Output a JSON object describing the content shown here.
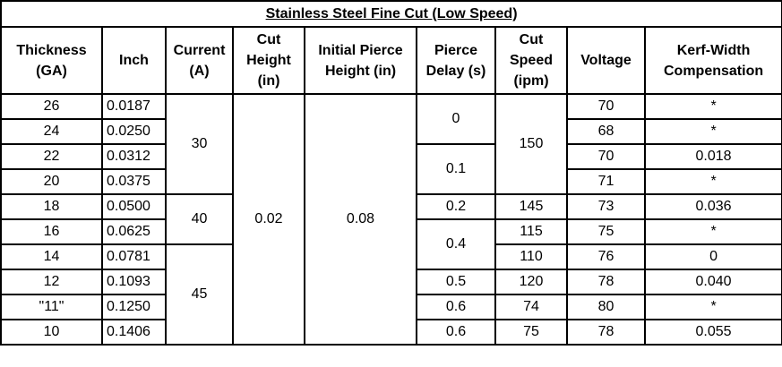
{
  "title": "Stainless Steel Fine Cut (Low Speed)",
  "headers": {
    "thickness": [
      "Thickness",
      "(GA)"
    ],
    "inch": [
      "Inch"
    ],
    "current": [
      "Current",
      "(A)"
    ],
    "cut_height": [
      "Cut",
      "Height",
      "(in)"
    ],
    "pierce_height": [
      "Initial Pierce",
      "Height (in)"
    ],
    "pierce_delay": [
      "Pierce",
      "Delay (s)"
    ],
    "cut_speed": [
      "Cut",
      "Speed",
      "(ipm)"
    ],
    "voltage": [
      "Voltage"
    ],
    "kerf": [
      "Kerf-Width",
      "Compensation"
    ]
  },
  "rows": [
    {
      "gauge": "26",
      "inch": "0.0187",
      "voltage": "70",
      "kerf": "*"
    },
    {
      "gauge": "24",
      "inch": "0.0250",
      "voltage": "68",
      "kerf": "*"
    },
    {
      "gauge": "22",
      "inch": "0.0312",
      "voltage": "70",
      "kerf": "0.018"
    },
    {
      "gauge": "20",
      "inch": "0.0375",
      "voltage": "71",
      "kerf": "*"
    },
    {
      "gauge": "18",
      "inch": "0.0500",
      "voltage": "73",
      "kerf": "0.036"
    },
    {
      "gauge": "16",
      "inch": "0.0625",
      "voltage": "75",
      "kerf": "*"
    },
    {
      "gauge": "14",
      "inch": "0.0781",
      "voltage": "76",
      "kerf": "0"
    },
    {
      "gauge": "12",
      "inch": "0.1093",
      "voltage": "78",
      "kerf": "0.040"
    },
    {
      "gauge": "\"11\"",
      "inch": "0.1250",
      "voltage": "80",
      "kerf": "*"
    },
    {
      "gauge": "10",
      "inch": "0.1406",
      "voltage": "78",
      "kerf": "0.055"
    }
  ],
  "current_groups": [
    "30",
    "40",
    "45"
  ],
  "cut_height": "0.02",
  "pierce_height": "0.08",
  "pierce_delay_groups": [
    "0",
    "0.1",
    "0.2",
    "0.4",
    "0.5",
    "0.6",
    "0.6"
  ],
  "cut_speed_groups": [
    "150",
    "145",
    "115",
    "110",
    "120",
    "74",
    "75"
  ]
}
